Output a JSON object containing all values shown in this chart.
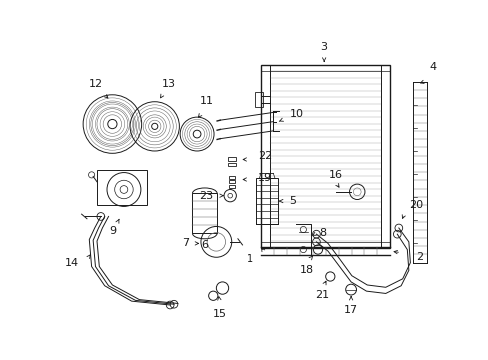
{
  "bg_color": "#ffffff",
  "fig_width": 4.89,
  "fig_height": 3.6,
  "dpi": 100,
  "line_color": "#1a1a1a",
  "mid_color": "#666666",
  "light_color": "#999999"
}
